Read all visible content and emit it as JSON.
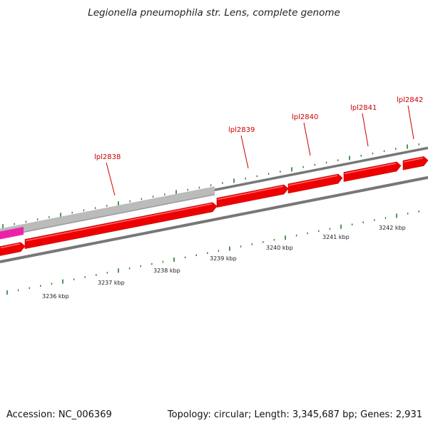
{
  "title": "Legionella pneumophila str. Lens, complete genome",
  "footer": {
    "accession": "Accession: NC_006369",
    "summary": "Topology: circular; Length: 3,345,687 bp; Genes: 2,931"
  },
  "colors": {
    "gene_forward": "#ee0000",
    "gene_reverse": "#ee0000",
    "gene_grey": "#bbbbbb",
    "gene_magenta": "#ee22aa",
    "backbone": "#777777",
    "ticks": "#2a7a2a",
    "gene_label": "#cc0000"
  },
  "gene_labels": [
    "lpl2838",
    "lpl2839",
    "lpl2840",
    "lpl2841",
    "lpl2842"
  ],
  "kbp_labels": [
    "3236 kbp",
    "3237 kbp",
    "3238 kbp",
    "3239 kbp",
    "3240 kbp",
    "3241 kbp",
    "3242 kbp"
  ]
}
